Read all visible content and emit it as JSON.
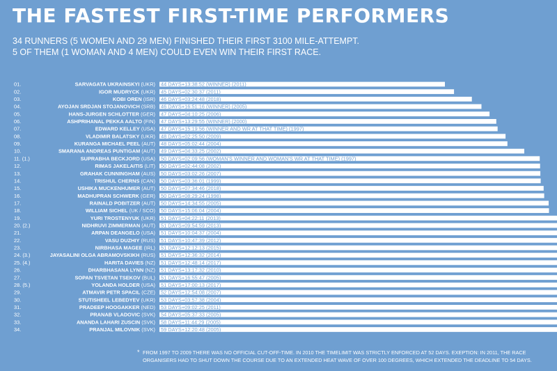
{
  "title": "THE FASTEST FIRST-TIME PERFORMERS",
  "subtitle_line1": "34 RUNNERS (5 WOMEN AND 29 MEN) FINISHED THEIR FIRST 3100 MILE-ATTEMPT.",
  "subtitle_line2": "5 OF THEM (1 WOMAN AND 4 MEN) COULD EVEN WIN THEIR FIRST RACE.",
  "footnote_star": "*",
  "footnote": "FROM 1997 TO 2009 THERE WAS NO OFFICIAL CUT-OFF-TIME. IN 2010 THE TIMELIMIT WAS STRICTLY ENFORCED AT 52 DAYS. EXEPTION: IN 2011, THE RACE ORGANISERS HAD TO SHUT DOWN THE COURSE DUE TO AN EXTENDED HEAT WAVE OF OVER 100 DEGREES, WHICH EXTENDED THE DEADLINE TO 54 DAYS.",
  "colors": {
    "background": "#6f9fd1",
    "bar": "#ffffff",
    "bar_text": "#6f9fd1",
    "text": "#ffffff"
  },
  "chart_data": {
    "type": "bar",
    "orientation": "horizontal",
    "unit": "days",
    "rows": [
      {
        "rank": "01.",
        "name": "SARVAGATA UKRAINSKYI",
        "country": "(UKR)",
        "label": "44 DAYS+13:38:52 (WINNER) (2011)",
        "days": 44.57,
        "star": false
      },
      {
        "rank": "02.",
        "name": "IGOR MUDRYCK",
        "country": "(UKR)",
        "label": "45 DAYS+02:30:37 (2011)",
        "days": 45.1,
        "star": false
      },
      {
        "rank": "03.",
        "name": "KOBI OREN",
        "country": "(ISR)",
        "label": "46 DAYS+03:24:48 (2018)",
        "days": 46.14,
        "star": false
      },
      {
        "rank": "04.",
        "name": "AYOJAN SRDJAN STOJANOVICH",
        "country": "(SRB)",
        "label": "46 DAYS+16:51:16 (WINNER) (2005)",
        "days": 46.7,
        "star": false
      },
      {
        "rank": "05.",
        "name": "HANS-JURGEN SCHLOTTER",
        "country": "(GER)",
        "label": "47 DAYS+04:10:25 (2006)",
        "days": 47.17,
        "star": false
      },
      {
        "rank": "06.",
        "name": "ASHPRIHANAL PEKKA AALTO",
        "country": "(FIN)",
        "label": "47 DAYS+13:29:55 (WINNER) (2000)",
        "days": 47.56,
        "star": false
      },
      {
        "rank": "07.",
        "name": "EDWARD KELLEY",
        "country": "(USA)",
        "label": "47 DAYS+15:19:56 (WINNER AND WR AT THAT TIME) (1997)",
        "days": 47.64,
        "star": false
      },
      {
        "rank": "08.",
        "name": "VLADIMIR BALATSKY",
        "country": "(UKR)",
        "label": "48 DAYS+02:25:50 (2009)",
        "days": 48.1,
        "star": false
      },
      {
        "rank": "09.",
        "name": "KURANGA MICHAEL PEEL",
        "country": "(AUT)",
        "label": "48 DAYS+05:02:44 (2004)",
        "days": 48.21,
        "star": false
      },
      {
        "rank": "10.",
        "name": "SMARANA ANDREAS PUNTIGAM",
        "country": "(AUT)",
        "label": "49 DAYS+04:33:25 (2002)",
        "days": 49.19,
        "star": false
      },
      {
        "rank": "11. (1.)",
        "name": "SUPRABHA BECKJORD",
        "country": "(USA)",
        "label": "50 DAYS+02:09:56 (WOMAN'S WINNER AND WOMAN'S WR AT THAT TIME) (1997)",
        "days": 50.09,
        "star": false
      },
      {
        "rank": "12.",
        "name": "RIMAS JAKELAITIS",
        "country": "(LIT)",
        "label": "50 DAYS+02:44:08 (2002)",
        "days": 50.11,
        "star": false
      },
      {
        "rank": "13.",
        "name": "GRAHAK CUNNINGHAM",
        "country": "(AUS)",
        "label": "50 DAYS+03:02:26 (2007)",
        "days": 50.13,
        "star": false
      },
      {
        "rank": "14.",
        "name": "TRISHUL CHERNS",
        "country": "(CAN)",
        "label": "50 DAYS+03:36:01 (1999)",
        "days": 50.15,
        "star": false
      },
      {
        "rank": "15.",
        "name": "USHIKA MUCKENHUMER",
        "country": "(AUT)",
        "label": "50 DAYS+07:34:46 (2018)",
        "days": 50.32,
        "star": false
      },
      {
        "rank": "16.",
        "name": "MADHUPRAN SCHWERK",
        "country": "(GER)",
        "label": "50 DAYS+08:29:24 (1998)",
        "days": 50.35,
        "star": false
      },
      {
        "rank": "17.",
        "name": "RAINALD POBITZER",
        "country": "(AUT)",
        "label": "50 DAYS+14:34:55 (2005)",
        "days": 50.61,
        "star": false
      },
      {
        "rank": "18.",
        "name": "WILLIAM SICHEL",
        "country": "(UK / SCO)",
        "label": "50 DAYS+15:06:04 (2004)",
        "days": 50.63,
        "star": false
      },
      {
        "rank": "19.",
        "name": "YURI TROSTENYUK",
        "country": "(UKR)",
        "label": "51 DAYS+04:22:11 (2013)",
        "days": 51.18,
        "star": false
      },
      {
        "rank": "20. (2.)",
        "name": "NIDHRUVI ZIMMERMAN",
        "country": "(AUT)",
        "label": "51 DAYS+09:54:59 (2013)",
        "days": 51.41,
        "star": false
      },
      {
        "rank": "21.",
        "name": "ARPAN DEANGELO",
        "country": "(USA)",
        "label": "51 DAYS+10:04:37 (2004)",
        "days": 51.42,
        "star": false
      },
      {
        "rank": "22.",
        "name": "VASU DUZHIY",
        "country": "(RUS)",
        "label": "51 DAYS+10:47:39 (2012)",
        "days": 51.45,
        "star": false
      },
      {
        "rank": "23.",
        "name": "NIRBHASA MAGEE",
        "country": "(IRL)",
        "label": "51 DAYS+12:12:13 (2015)",
        "days": 51.51,
        "star": false
      },
      {
        "rank": "24. (3.)",
        "name": "JAYASALINI OLGA ABRAMOVSKIKH",
        "country": "(RUS)",
        "label": "51 DAYS+12:36:32 (2014)",
        "days": 51.53,
        "star": false
      },
      {
        "rank": "25. (4.)",
        "name": "HARITA DAVIES",
        "country": "(NZ)",
        "label": "51 DAYS+12:48:14 (2017)",
        "days": 51.53,
        "star": false
      },
      {
        "rank": "26.",
        "name": "DHARBHASANA LYNN",
        "country": "(NZ)",
        "label": "51 DAYS+13:17:32 (2010)",
        "days": 51.55,
        "star": false
      },
      {
        "rank": "27.",
        "name": "SOPAN TSVETAN TSEKOV",
        "country": "(BUL)",
        "label": "51 DAYS+16:55:47 (2005)",
        "days": 51.71,
        "star": false
      },
      {
        "rank": "28. (5.)",
        "name": "YOLANDA HOLDER",
        "country": "(USA)",
        "label": "51 DAYS+17:00:13 (2017)",
        "days": 51.71,
        "star": false
      },
      {
        "rank": "29.",
        "name": "ATMAVIR PETR SPACIL",
        "country": "(CZE)",
        "label": "52 DAYS+12:54:08 (2007)",
        "days": 52.54,
        "star": true
      },
      {
        "rank": "30.",
        "name": "STUTISHEEL LEBEDYEV",
        "country": "(UKR)",
        "label": "53 DAYS+03:57:38 (2004)",
        "days": 53.17,
        "star": true
      },
      {
        "rank": "31.",
        "name": "PRADEEP HOOGAKKER",
        "country": "(NED)",
        "label": "53 DAYS+09:02:25 (2011)",
        "days": 53.38,
        "star": true
      },
      {
        "rank": "32.",
        "name": "PRANAB VLADOVIC",
        "country": "(SVK)",
        "label": "54 DAYS+05:37:33 (2005)",
        "days": 54.23,
        "star": true
      },
      {
        "rank": "33.",
        "name": "ANANDA LAHARI ZUSCIN",
        "country": "(SVK)",
        "label": "58 DAYS+11:44:29 (2005)",
        "days": 58.49,
        "star": true
      },
      {
        "rank": "34.",
        "name": "PRANJAL MILOVNIK",
        "country": "(SVK)",
        "label": "59 DAYS+12:20:48 (2005)",
        "days": 59.51,
        "star": true
      }
    ]
  }
}
